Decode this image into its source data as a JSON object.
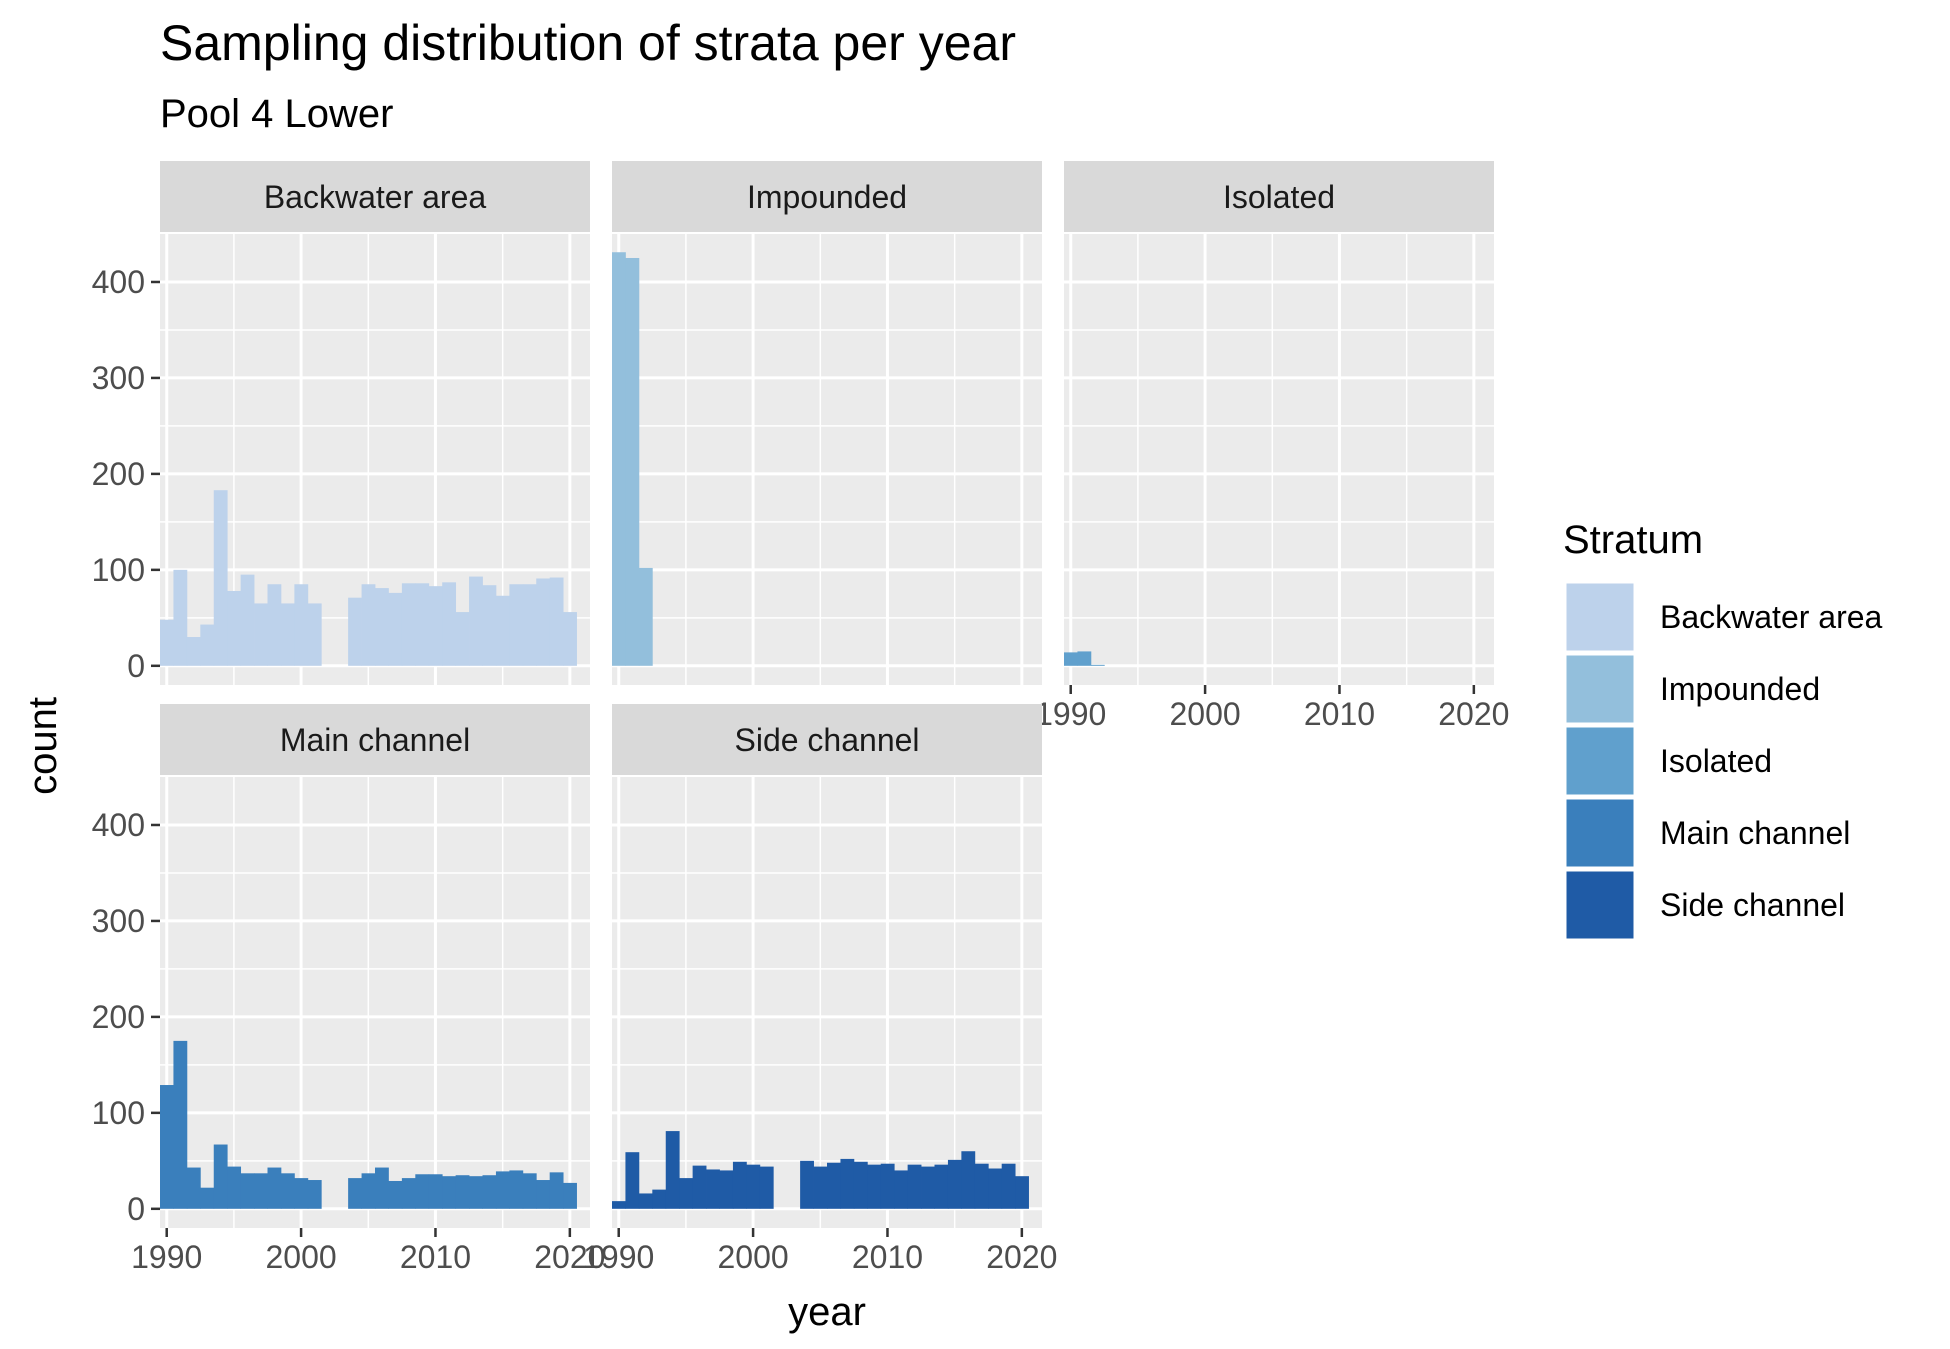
{
  "chart_data": {
    "type": "bar",
    "title": "Sampling distribution of strata per year",
    "subtitle": "Pool 4 Lower",
    "xlabel": "year",
    "ylabel": "count",
    "xlim": [
      1989.5,
      2021.5
    ],
    "ylim": [
      -20,
      450
    ],
    "x_ticks": [
      1990,
      2000,
      2010,
      2020
    ],
    "y_ticks": [
      0,
      100,
      200,
      300,
      400
    ],
    "grid": true,
    "legend_position": "right",
    "legend": {
      "title": "Stratum",
      "entries": [
        {
          "label": "Backwater area",
          "color": "#bdd2eb"
        },
        {
          "label": "Impounded",
          "color": "#93bfdc"
        },
        {
          "label": "Isolated",
          "color": "#60a0cd"
        },
        {
          "label": "Main channel",
          "color": "#3a7fbc"
        },
        {
          "label": "Side channel",
          "color": "#1f5ba6"
        }
      ]
    },
    "panels": [
      {
        "name": "Backwater area",
        "color": "#bdd2eb",
        "years": [
          1990,
          1991,
          1992,
          1993,
          1994,
          1995,
          1996,
          1997,
          1998,
          1999,
          2000,
          2001,
          2002,
          2004,
          2005,
          2006,
          2007,
          2008,
          2009,
          2010,
          2011,
          2012,
          2013,
          2014,
          2015,
          2016,
          2017,
          2018,
          2019,
          2020
        ],
        "values": [
          48,
          100,
          30,
          43,
          183,
          78,
          95,
          65,
          85,
          65,
          85,
          65,
          0,
          71,
          85,
          81,
          76,
          86,
          86,
          83,
          87,
          56,
          93,
          84,
          73,
          85,
          85,
          91,
          92,
          56
        ]
      },
      {
        "name": "Impounded",
        "color": "#93bfdc",
        "years": [
          1990,
          1991,
          1992
        ],
        "values": [
          431,
          425,
          102
        ]
      },
      {
        "name": "Isolated",
        "color": "#60a0cd",
        "years": [
          1990,
          1991,
          1992
        ],
        "values": [
          14,
          15,
          1
        ]
      },
      {
        "name": "Main channel",
        "color": "#3a7fbc",
        "years": [
          1990,
          1991,
          1992,
          1993,
          1994,
          1995,
          1996,
          1997,
          1998,
          1999,
          2000,
          2001,
          2002,
          2004,
          2005,
          2006,
          2007,
          2008,
          2009,
          2010,
          2011,
          2012,
          2013,
          2014,
          2015,
          2016,
          2017,
          2018,
          2019,
          2020
        ],
        "values": [
          129,
          175,
          43,
          22,
          67,
          44,
          37,
          37,
          43,
          37,
          32,
          30,
          0,
          32,
          37,
          43,
          29,
          32,
          36,
          36,
          34,
          35,
          34,
          35,
          39,
          40,
          37,
          30,
          38,
          27
        ]
      },
      {
        "name": "Side channel",
        "color": "#1f5ba6",
        "years": [
          1990,
          1991,
          1992,
          1993,
          1994,
          1995,
          1996,
          1997,
          1998,
          1999,
          2000,
          2001,
          2002,
          2004,
          2005,
          2006,
          2007,
          2008,
          2009,
          2010,
          2011,
          2012,
          2013,
          2014,
          2015,
          2016,
          2017,
          2018,
          2019,
          2020
        ],
        "values": [
          8,
          59,
          16,
          20,
          81,
          32,
          45,
          41,
          40,
          49,
          46,
          44,
          0,
          50,
          44,
          48,
          52,
          49,
          46,
          47,
          40,
          46,
          44,
          46,
          51,
          60,
          47,
          42,
          47,
          34
        ]
      }
    ]
  }
}
